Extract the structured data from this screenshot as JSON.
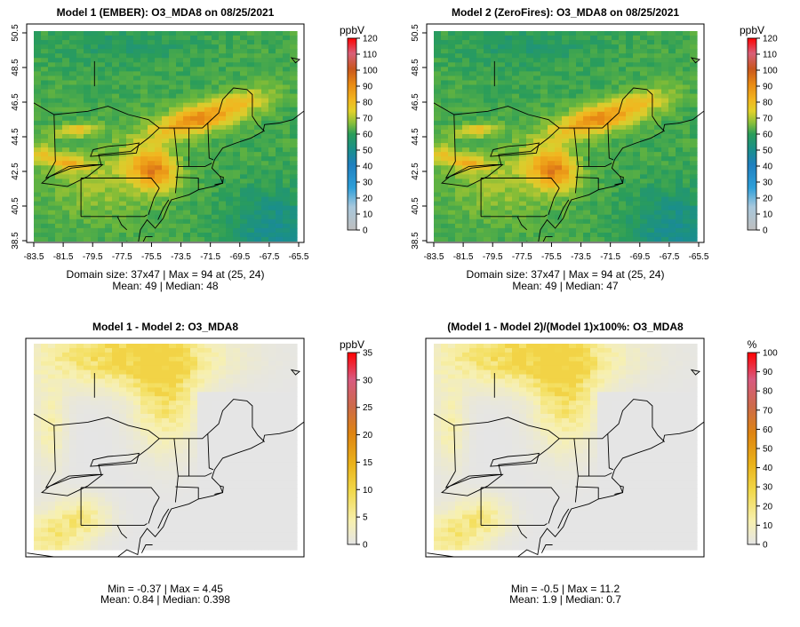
{
  "chart_data": [
    {
      "type": "heatmap",
      "title": "Model 1 (EMBER): O3_MDA8 on 08/25/2021",
      "grid_size": "37x47",
      "x_ticks": [
        "-83.5",
        "-81.5",
        "-79.5",
        "-77.5",
        "-75.5",
        "-73.5",
        "-71.5",
        "-69.5",
        "-67.5",
        "-65.5"
      ],
      "y_ticks": [
        "38.5",
        "40.5",
        "42.5",
        "44.5",
        "46.5",
        "48.5",
        "50.5"
      ],
      "x_range": [
        -84,
        -64.5
      ],
      "y_range": [
        38.2,
        50.8
      ],
      "colorbar": {
        "unit": "ppbV",
        "min": 0,
        "max": 120,
        "ticks": [
          "0",
          "10",
          "20",
          "30",
          "40",
          "50",
          "60",
          "70",
          "80",
          "90",
          "100",
          "110",
          "120"
        ],
        "palette": "ozone"
      },
      "stats": [
        "Domain size: 37x47 | Max = 94 at (25, 24)",
        "Mean: 49 |  Median: 48"
      ],
      "mean": 49,
      "median": 48,
      "max": 94
    },
    {
      "type": "heatmap",
      "title": "Model 2 (ZeroFires): O3_MDA8 on 08/25/2021",
      "grid_size": "37x47",
      "x_ticks": [
        "-83.5",
        "-81.5",
        "-79.5",
        "-77.5",
        "-75.5",
        "-73.5",
        "-71.5",
        "-69.5",
        "-67.5",
        "-65.5"
      ],
      "y_ticks": [
        "38.5",
        "40.5",
        "42.5",
        "44.5",
        "46.5",
        "48.5",
        "50.5"
      ],
      "x_range": [
        -84,
        -64.5
      ],
      "y_range": [
        38.2,
        50.8
      ],
      "colorbar": {
        "unit": "ppbV",
        "min": 0,
        "max": 120,
        "ticks": [
          "0",
          "10",
          "20",
          "30",
          "40",
          "50",
          "60",
          "70",
          "80",
          "90",
          "100",
          "110",
          "120"
        ],
        "palette": "ozone"
      },
      "stats": [
        "Domain size: 37x47 | Max = 94 at (25, 24)",
        "Mean: 49 |  Median: 47"
      ],
      "mean": 49,
      "median": 47,
      "max": 94
    },
    {
      "type": "heatmap",
      "title": "Model 1 - Model 2: O3_MDA8",
      "x_ticks": [],
      "y_ticks": [],
      "colorbar": {
        "unit": "ppbV",
        "min": 0,
        "max": 35,
        "ticks": [
          "0",
          "5",
          "10",
          "15",
          "20",
          "25",
          "30",
          "35"
        ],
        "palette": "diff"
      },
      "stats": [
        "Min = -0.37 | Max = 4.45",
        "Mean: 0.84 |  Median: 0.398"
      ],
      "min": -0.37,
      "max": 4.45,
      "mean": 0.84,
      "median": 0.398
    },
    {
      "type": "heatmap",
      "title": "(Model 1 - Model 2)/(Model 1)x100%: O3_MDA8",
      "x_ticks": [],
      "y_ticks": [],
      "colorbar": {
        "unit": "%",
        "min": 0,
        "max": 100,
        "ticks": [
          "0",
          "10",
          "20",
          "30",
          "40",
          "50",
          "60",
          "70",
          "80",
          "90",
          "100"
        ],
        "palette": "diff"
      },
      "stats": [
        "Min = -0.5 | Max = 11.2",
        "Mean: 1.9 |  Median: 0.7"
      ],
      "min": -0.5,
      "max": 11.2,
      "mean": 1.9,
      "median": 0.7
    }
  ],
  "colors": {
    "ozone_palette": [
      "#bebebe",
      "#2e9fd9",
      "#1f7fbf",
      "#1a8f8a",
      "#2a9d5a",
      "#6fb83a",
      "#d8cf2e",
      "#f2b51f",
      "#e88a14",
      "#d2691e",
      "#d04a5a",
      "#e0405a",
      "#ff0000"
    ],
    "diff_palette": [
      "#e5e5e5",
      "#f7f0b0",
      "#f4df60",
      "#efc21f",
      "#e69a10",
      "#d87430",
      "#c85a60",
      "#e03050",
      "#ff0000"
    ],
    "map_lines": "#000000"
  }
}
